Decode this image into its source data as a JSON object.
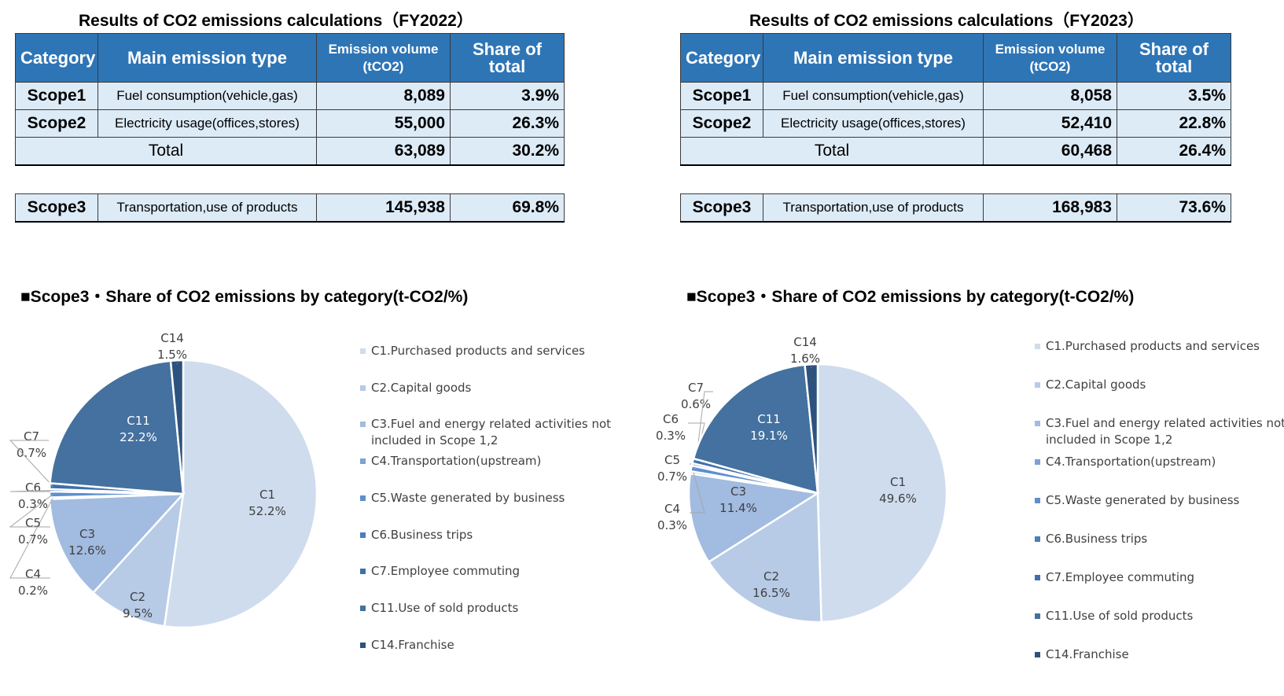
{
  "panels": [
    {
      "table_title": "Results of CO2 emissions calculations（FY2022）",
      "headers": {
        "category": "Category",
        "type": "Main emission type",
        "volume_line1": "Emission volume",
        "volume_line2": "(tCO2)",
        "share": "Share of total"
      },
      "rows": [
        {
          "category": "Scope1",
          "type": "Fuel consumption(vehicle,gas)",
          "volume": "8,089",
          "share": "3.9%"
        },
        {
          "category": "Scope2",
          "type": "Electricity usage(offices,stores)",
          "volume": "55,000",
          "share": "26.3%"
        }
      ],
      "total": {
        "label": "Total",
        "volume": "63,089",
        "share": "30.2%"
      },
      "scope3": {
        "category": "Scope3",
        "type": "Transportation,use of products",
        "volume": "145,938",
        "share": "69.8%"
      },
      "pie_title": "■Scope3・Share of CO2 emissions by category(t-CO2/%)"
    },
    {
      "table_title": "Results of CO2 emissions calculations（FY2023）",
      "headers": {
        "category": "Category",
        "type": "Main emission type",
        "volume_line1": "Emission volume",
        "volume_line2": "(tCO2)",
        "share": "Share of total"
      },
      "rows": [
        {
          "category": "Scope1",
          "type": "Fuel consumption(vehicle,gas)",
          "volume": "8,058",
          "share": "3.5%"
        },
        {
          "category": "Scope2",
          "type": "Electricity usage(offices,stores)",
          "volume": "52,410",
          "share": "22.8%"
        }
      ],
      "total": {
        "label": "Total",
        "volume": "60,468",
        "share": "26.4%"
      },
      "scope3": {
        "category": "Scope3",
        "type": "Transportation,use of products",
        "volume": "168,983",
        "share": "73.6%"
      },
      "pie_title": "■Scope3・Share of CO2 emissions by category(t-CO2/%)"
    }
  ],
  "colors": {
    "header_bg": "#2e75b6",
    "cell_bg": "#ddebf7",
    "C1": "#cfdcee",
    "C2": "#b7cbe6",
    "C3": "#a2bbe0",
    "C4": "#7aa3d6",
    "C5": "#5c8fd0",
    "C6": "#4a7ec0",
    "C7": "#3f6fad",
    "C11": "#44719f",
    "C14": "#2e527e"
  },
  "chart_data": [
    {
      "type": "pie",
      "title": "■Scope3・Share of CO2 emissions by category(t-CO2/%)",
      "categories": [
        "C1",
        "C2",
        "C3",
        "C4",
        "C5",
        "C6",
        "C7",
        "C11",
        "C14"
      ],
      "values": [
        52.2,
        9.5,
        12.6,
        0.2,
        0.7,
        0.3,
        0.7,
        22.2,
        1.5
      ],
      "labels": [
        "52.2%",
        "9.5%",
        "12.6%",
        "0.2%",
        "0.7%",
        "0.3%",
        "0.7%",
        "22.2%",
        "1.5%"
      ],
      "legend": [
        "C1.Purchased products and services",
        "C2.Capital goods",
        "C3.Fuel and energy related activities not included in Scope 1,2",
        "C4.Transportation(upstream)",
        "C5.Waste generated by business",
        "C6.Business trips",
        "C7.Employee commuting",
        "C11.Use of sold products",
        "C14.Franchise"
      ],
      "legend_position": "right"
    },
    {
      "type": "pie",
      "title": "■Scope3・Share of CO2 emissions by category(t-CO2/%)",
      "categories": [
        "C1",
        "C2",
        "C3",
        "C4",
        "C5",
        "C6",
        "C7",
        "C11",
        "C14"
      ],
      "values": [
        49.6,
        16.5,
        11.4,
        0.3,
        0.7,
        0.3,
        0.6,
        19.1,
        1.6
      ],
      "labels": [
        "49.6%",
        "16.5%",
        "11.4%",
        "0.3%",
        "0.7%",
        "0.3%",
        "0.6%",
        "19.1%",
        "1.6%"
      ],
      "legend": [
        "C1.Purchased products and services",
        "C2.Capital goods",
        "C3.Fuel and energy related activities not included in Scope 1,2",
        "C4.Transportation(upstream)",
        "C5.Waste generated by business",
        "C6.Business trips",
        "C7.Employee commuting",
        "C11.Use of sold products",
        "C14.Franchise"
      ],
      "legend_position": "right"
    }
  ]
}
